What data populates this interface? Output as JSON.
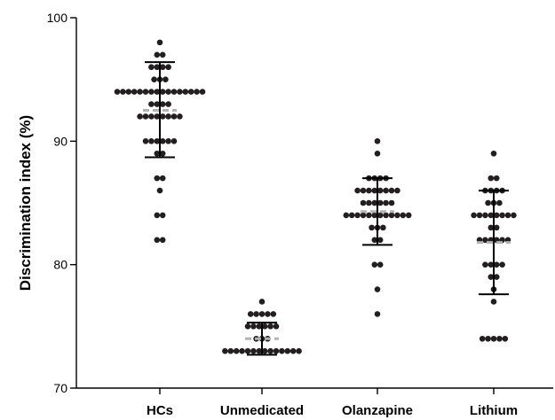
{
  "chart_data": {
    "type": "scatter",
    "xlabel": "",
    "ylabel": "Discrimination index (%)",
    "ylim": [
      70,
      100
    ],
    "yticks": [
      70,
      80,
      90,
      100
    ],
    "grid": false,
    "colors": {
      "points": "#231f20",
      "error_bars": "#000000",
      "mean_line": "#b3b3b3"
    },
    "categories": [
      "HCs",
      "Unmedicated",
      "Olanzapine",
      "Lithium"
    ],
    "groups": [
      {
        "name": "HCs",
        "mean": 92.5,
        "sd_upper": 96.4,
        "sd_lower": 88.7,
        "rows": [
          {
            "y": 98,
            "n": 1
          },
          {
            "y": 97,
            "n": 2
          },
          {
            "y": 96,
            "n": 4
          },
          {
            "y": 95,
            "n": 3
          },
          {
            "y": 94,
            "n": 16
          },
          {
            "y": 93,
            "n": 4
          },
          {
            "y": 92,
            "n": 8
          },
          {
            "y": 90,
            "n": 6
          },
          {
            "y": 89,
            "n": 2
          },
          {
            "y": 87,
            "n": 2
          },
          {
            "y": 86,
            "n": 1
          },
          {
            "y": 84,
            "n": 2
          },
          {
            "y": 82,
            "n": 2
          }
        ]
      },
      {
        "name": "Unmedicated",
        "mean": 74.0,
        "sd_upper": 75.3,
        "sd_lower": 72.7,
        "rows": [
          {
            "y": 77,
            "n": 1
          },
          {
            "y": 76,
            "n": 5
          },
          {
            "y": 75,
            "n": 6
          },
          {
            "y": 74,
            "n": 3
          },
          {
            "y": 73,
            "n": 14
          }
        ]
      },
      {
        "name": "Olanzapine",
        "mean": 84.3,
        "sd_upper": 87.0,
        "sd_lower": 81.6,
        "rows": [
          {
            "y": 90,
            "n": 1
          },
          {
            "y": 89,
            "n": 1
          },
          {
            "y": 87,
            "n": 4
          },
          {
            "y": 86,
            "n": 8
          },
          {
            "y": 85,
            "n": 6
          },
          {
            "y": 84,
            "n": 12
          },
          {
            "y": 83,
            "n": 3
          },
          {
            "y": 82,
            "n": 2
          },
          {
            "y": 80,
            "n": 2
          },
          {
            "y": 78,
            "n": 1
          },
          {
            "y": 76,
            "n": 1
          }
        ]
      },
      {
        "name": "Lithium",
        "mean": 81.8,
        "sd_upper": 86.0,
        "sd_lower": 77.6,
        "rows": [
          {
            "y": 89,
            "n": 1
          },
          {
            "y": 87,
            "n": 2
          },
          {
            "y": 86,
            "n": 4
          },
          {
            "y": 85,
            "n": 3
          },
          {
            "y": 84,
            "n": 8
          },
          {
            "y": 83,
            "n": 2
          },
          {
            "y": 82,
            "n": 6
          },
          {
            "y": 80,
            "n": 4
          },
          {
            "y": 79,
            "n": 2
          },
          {
            "y": 78,
            "n": 1
          },
          {
            "y": 77,
            "n": 1
          },
          {
            "y": 74,
            "n": 5
          }
        ]
      }
    ]
  }
}
